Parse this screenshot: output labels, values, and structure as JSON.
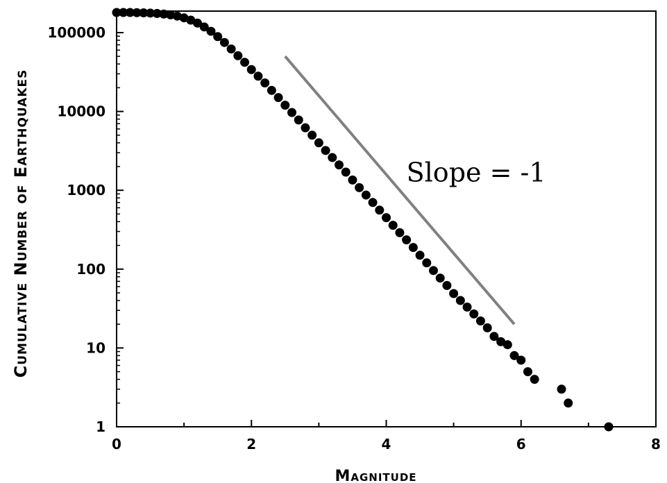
{
  "chart_data": {
    "type": "scatter",
    "title": "",
    "xlabel": "Magnitude",
    "ylabel": "Cumulative Number of Earthquakes",
    "x_scale": "linear",
    "y_scale": "log",
    "xlim": [
      0,
      8
    ],
    "ylim": [
      1,
      200000
    ],
    "x_ticks": [
      0,
      2,
      4,
      6,
      8
    ],
    "x_tick_labels": [
      "0",
      "2",
      "4",
      "6",
      "8"
    ],
    "y_ticks": [
      1,
      10,
      100,
      1000,
      10000,
      100000
    ],
    "y_tick_labels": [
      "1",
      "10",
      "100",
      "1000",
      "10000",
      "100000"
    ],
    "grid": false,
    "legend": "none",
    "series": [
      {
        "color": "#000000",
        "points": [
          [
            0.0,
            180000
          ],
          [
            0.1,
            180000
          ],
          [
            0.2,
            180000
          ],
          [
            0.3,
            179000
          ],
          [
            0.4,
            178000
          ],
          [
            0.5,
            177000
          ],
          [
            0.6,
            175000
          ],
          [
            0.7,
            172000
          ],
          [
            0.8,
            168000
          ],
          [
            0.9,
            162000
          ],
          [
            1.0,
            154000
          ],
          [
            1.1,
            144000
          ],
          [
            1.2,
            132000
          ],
          [
            1.3,
            118000
          ],
          [
            1.4,
            104000
          ],
          [
            1.5,
            89000
          ],
          [
            1.6,
            75000
          ],
          [
            1.7,
            62000
          ],
          [
            1.8,
            51000
          ],
          [
            1.9,
            42000
          ],
          [
            2.0,
            34000
          ],
          [
            2.1,
            28000
          ],
          [
            2.2,
            23000
          ],
          [
            2.3,
            18500
          ],
          [
            2.4,
            15000
          ],
          [
            2.5,
            12000
          ],
          [
            2.6,
            9700
          ],
          [
            2.7,
            7800
          ],
          [
            2.8,
            6200
          ],
          [
            2.9,
            5000
          ],
          [
            3.0,
            4000
          ],
          [
            3.1,
            3200
          ],
          [
            3.2,
            2600
          ],
          [
            3.3,
            2100
          ],
          [
            3.4,
            1700
          ],
          [
            3.5,
            1350
          ],
          [
            3.6,
            1080
          ],
          [
            3.7,
            870
          ],
          [
            3.8,
            700
          ],
          [
            3.9,
            560
          ],
          [
            4.0,
            450
          ],
          [
            4.1,
            360
          ],
          [
            4.2,
            290
          ],
          [
            4.3,
            235
          ],
          [
            4.4,
            188
          ],
          [
            4.5,
            150
          ],
          [
            4.6,
            120
          ],
          [
            4.7,
            96
          ],
          [
            4.8,
            77
          ],
          [
            4.9,
            62
          ],
          [
            5.0,
            49
          ],
          [
            5.1,
            40
          ],
          [
            5.2,
            33
          ],
          [
            5.3,
            27
          ],
          [
            5.4,
            22
          ],
          [
            5.5,
            18
          ],
          [
            5.6,
            14
          ],
          [
            5.7,
            12
          ],
          [
            5.8,
            11
          ],
          [
            5.9,
            8
          ],
          [
            6.0,
            7
          ],
          [
            6.1,
            5
          ],
          [
            6.2,
            4
          ],
          [
            6.6,
            3
          ],
          [
            6.7,
            2
          ],
          [
            7.3,
            1
          ]
        ]
      }
    ],
    "reference_line": {
      "color": "#808080",
      "from": [
        2.5,
        50000
      ],
      "to": [
        5.9,
        20
      ]
    },
    "annotations": [
      {
        "text": "Slope = -1",
        "x": 4.3,
        "y": 1300
      }
    ]
  }
}
